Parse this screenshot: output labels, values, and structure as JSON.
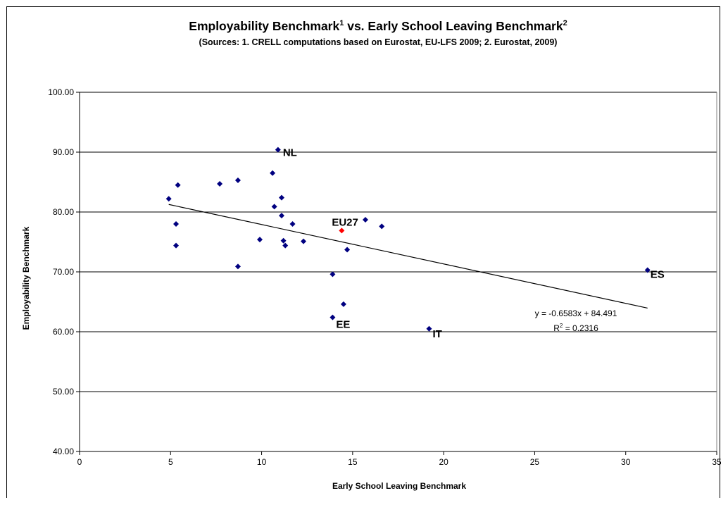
{
  "chart_data": {
    "type": "scatter",
    "title": "Employability Benchmark",
    "title_sup1": "1",
    "title_mid": " vs. Early School Leaving Benchmark",
    "title_sup2": "2",
    "subtitle": "(Sources: 1. CRELL computations based on Eurostat, EU-LFS 2009; 2. Eurostat, 2009)",
    "xlabel": "Early School Leaving Benchmark",
    "ylabel": "Employability Benchmark",
    "xlim": [
      0,
      35
    ],
    "ylim": [
      40,
      100
    ],
    "xticks": [
      "0",
      "5",
      "10",
      "15",
      "20",
      "25",
      "30",
      "35"
    ],
    "yticks": [
      "40.00",
      "50.00",
      "60.00",
      "70.00",
      "80.00",
      "90.00",
      "100.00"
    ],
    "grid": "horizontal",
    "series": [
      {
        "color": "#000080",
        "points": [
          {
            "x": 10.9,
            "y": 90.4,
            "label": "NL"
          },
          {
            "x": 10.6,
            "y": 86.5
          },
          {
            "x": 8.7,
            "y": 85.3
          },
          {
            "x": 7.7,
            "y": 84.7
          },
          {
            "x": 5.4,
            "y": 84.5
          },
          {
            "x": 11.1,
            "y": 82.4
          },
          {
            "x": 4.9,
            "y": 82.2
          },
          {
            "x": 10.7,
            "y": 80.9
          },
          {
            "x": 11.1,
            "y": 79.4
          },
          {
            "x": 15.7,
            "y": 78.7
          },
          {
            "x": 11.7,
            "y": 78.0
          },
          {
            "x": 5.3,
            "y": 78.0
          },
          {
            "x": 16.6,
            "y": 77.6
          },
          {
            "x": 9.9,
            "y": 75.4
          },
          {
            "x": 11.2,
            "y": 75.2
          },
          {
            "x": 12.3,
            "y": 75.1
          },
          {
            "x": 11.3,
            "y": 74.4
          },
          {
            "x": 5.3,
            "y": 74.4
          },
          {
            "x": 14.7,
            "y": 73.7
          },
          {
            "x": 8.7,
            "y": 70.9
          },
          {
            "x": 31.2,
            "y": 70.3,
            "label": "ES"
          },
          {
            "x": 13.9,
            "y": 69.6
          },
          {
            "x": 14.5,
            "y": 64.6
          },
          {
            "x": 13.9,
            "y": 62.4,
            "label": "EE"
          },
          {
            "x": 19.2,
            "y": 60.5,
            "label": "IT"
          }
        ]
      },
      {
        "color": "#ff0000",
        "label_color": "#0000cc",
        "points": [
          {
            "x": 14.4,
            "y": 76.9,
            "label": "EU27"
          }
        ]
      }
    ],
    "trendline": {
      "slope": -0.6583,
      "intercept": 84.491,
      "x_from": 4.9,
      "x_to": 31.2,
      "equation": "y = -0.6583x + 84.491",
      "r2_prefix": "R",
      "r2_sup": "2",
      "r2_value": " = 0.2316"
    }
  }
}
